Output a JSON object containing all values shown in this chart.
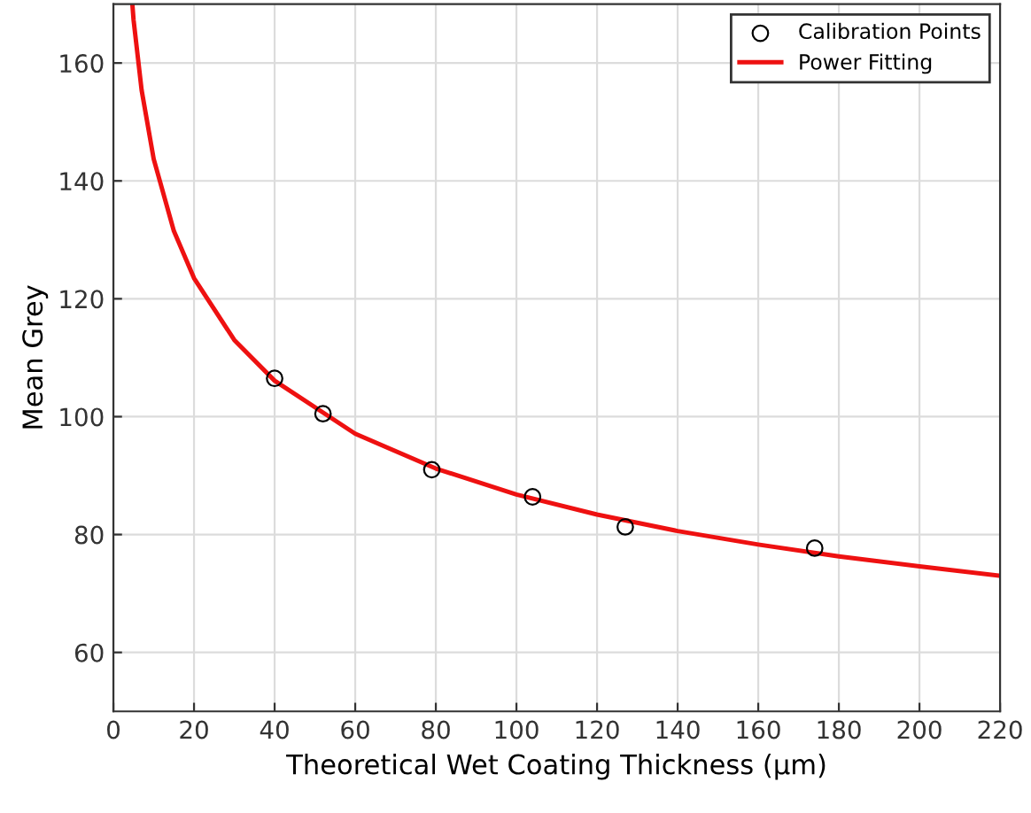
{
  "chart_data": {
    "type": "scatter",
    "xlabel": "Theoretical Wet Coating Thickness (μm)",
    "ylabel": "Mean Grey",
    "xlim": [
      0,
      220
    ],
    "ylim": [
      50,
      170
    ],
    "xticks": [
      0,
      20,
      40,
      60,
      80,
      100,
      120,
      140,
      160,
      180,
      200,
      220
    ],
    "yticks": [
      60,
      80,
      100,
      120,
      140,
      160
    ],
    "grid": true,
    "legend": "top right",
    "series": [
      {
        "name": "Calibration Points",
        "marker": "circle",
        "color": "#000000",
        "x": [
          40,
          52,
          79,
          104,
          127,
          174
        ],
        "values": [
          106.5,
          100.5,
          91,
          86.4,
          81.3,
          77.7
        ]
      },
      {
        "name": "Power Fitting",
        "type": "line",
        "marker": "none",
        "line_style": "solid",
        "color": "#ee1111",
        "x": [
          4.7,
          5,
          7,
          10,
          15,
          20,
          30,
          40,
          60,
          80,
          100,
          120,
          140,
          160,
          180,
          200,
          220
        ],
        "values": [
          170,
          167.3,
          155.4,
          143.7,
          131.5,
          123.5,
          113,
          106.1,
          97.1,
          91.2,
          86.8,
          83.4,
          80.6,
          78.3,
          76.3,
          74.6,
          73
        ]
      }
    ]
  }
}
